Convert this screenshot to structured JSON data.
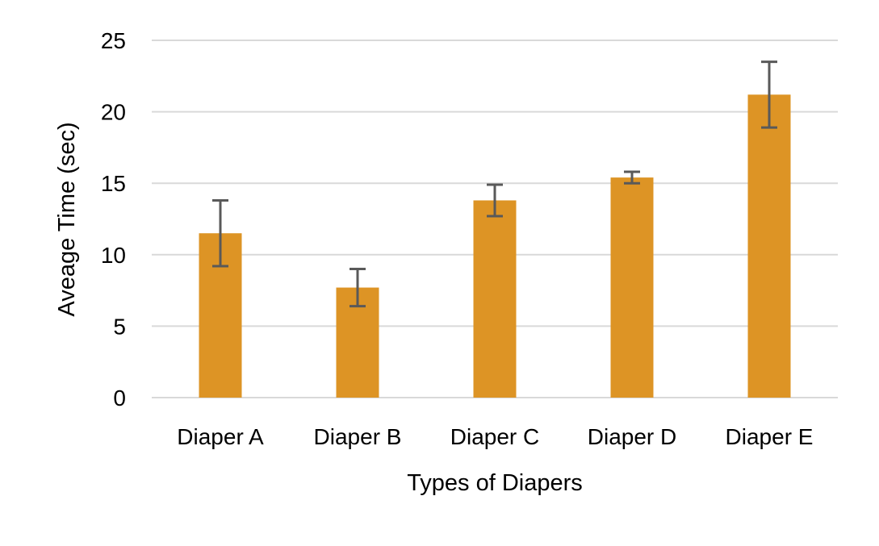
{
  "chart_data": {
    "type": "bar",
    "title": "",
    "xlabel": "Types of Diapers",
    "ylabel": "Aveage Time (sec)",
    "categories": [
      "Diaper A",
      "Diaper B",
      "Diaper C",
      "Diaper D",
      "Diaper E"
    ],
    "series": [
      {
        "values": [
          11.5,
          7.7,
          13.8,
          15.4,
          21.2
        ],
        "errors": [
          2.3,
          1.3,
          1.1,
          0.4,
          2.3
        ],
        "color": "#dd9425"
      }
    ],
    "ylim": [
      0,
      25
    ],
    "yticks": [
      "0",
      "5",
      "10",
      "15",
      "20",
      "25"
    ],
    "ytick_values": [
      0,
      5,
      10,
      15,
      20,
      25
    ],
    "grid": true,
    "legend": "none"
  }
}
